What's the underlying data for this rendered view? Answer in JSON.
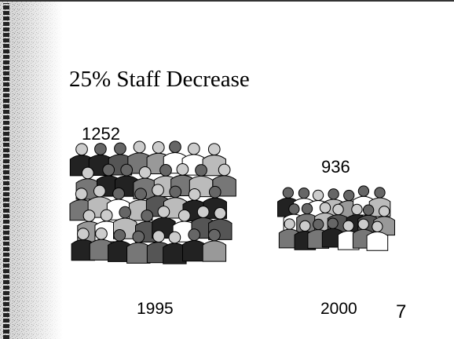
{
  "slide": {
    "title": "25% Staff Decrease",
    "groups": [
      {
        "count": 1252,
        "year": "1995"
      },
      {
        "count": 936,
        "year": "2000"
      }
    ],
    "page_number": "7"
  }
}
